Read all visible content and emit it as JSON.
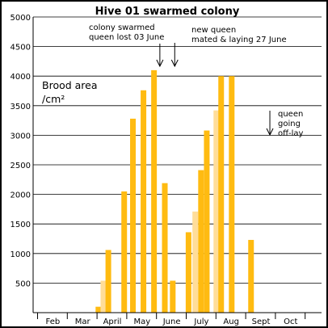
{
  "chart_data": {
    "type": "bar",
    "title": "Hive 01 swarmed colony",
    "ylabel_line1": "Brood area",
    "ylabel_line2": "/cm²",
    "ylim": [
      0,
      5000
    ],
    "yticks": [
      500,
      1000,
      1500,
      2000,
      2500,
      3000,
      3500,
      4000,
      4500,
      5000
    ],
    "ytick_labels": [
      "500",
      "1000",
      "1500",
      "2000",
      "2500",
      "3000",
      "3500",
      "4000",
      "4500",
      "5000"
    ],
    "months": [
      "Feb",
      "Mar",
      "April",
      "May",
      "June",
      "July",
      "Aug",
      "Sept",
      "Oct"
    ],
    "grid": "horizontal",
    "colors": {
      "solid": "#FFBB11",
      "light": "#FFDD99",
      "border": "#000000",
      "grid": "#000000"
    },
    "series": [
      {
        "date": "2 Apr",
        "value": 100,
        "style": "solid"
      },
      {
        "date": "7 Apr",
        "value": 540,
        "style": "light"
      },
      {
        "date": "12 Apr",
        "value": 1060,
        "style": "solid"
      },
      {
        "date": "28 Apr",
        "value": 2050,
        "style": "solid"
      },
      {
        "date": "7 May",
        "value": 3280,
        "style": "solid"
      },
      {
        "date": "18 May",
        "value": 3760,
        "style": "solid"
      },
      {
        "date": "29 May",
        "value": 4100,
        "style": "solid"
      },
      {
        "date": "9 Jun",
        "value": 2190,
        "style": "solid"
      },
      {
        "date": "17 Jun",
        "value": 540,
        "style": "solid"
      },
      {
        "date": "3 Jul",
        "value": 1360,
        "style": "solid"
      },
      {
        "date": "10 Jul",
        "value": 1710,
        "style": "light"
      },
      {
        "date": "16 Jul",
        "value": 2410,
        "style": "solid"
      },
      {
        "date": "22 Jul",
        "value": 3080,
        "style": "solid"
      },
      {
        "date": "1 Aug",
        "value": 3420,
        "style": "light"
      },
      {
        "date": "6 Aug",
        "value": 4000,
        "style": "solid"
      },
      {
        "date": "17 Aug",
        "value": 4000,
        "style": "solid"
      },
      {
        "date": "6 Sep",
        "value": 1230,
        "style": "solid"
      }
    ],
    "annotations": [
      {
        "lines": [
          "colony swarmed",
          "queen lost 03 June"
        ],
        "arrow_date": "4 Jun"
      },
      {
        "lines": [
          "new queen",
          "mated & laying 27 June"
        ],
        "arrow_date": "19 Jun"
      },
      {
        "lines": [
          "queen",
          "going",
          "off-lay"
        ],
        "arrow_date": "25 Sep"
      }
    ]
  }
}
